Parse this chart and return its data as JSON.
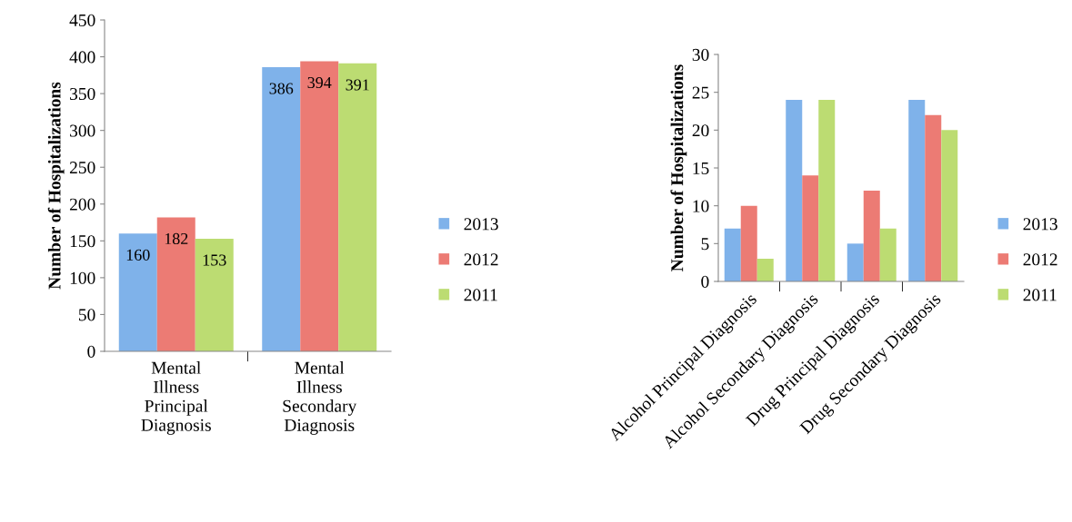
{
  "chart_data": [
    {
      "type": "bar",
      "ylabel": "Number of Hospitalizations",
      "categories": [
        "Mental\nIllness\nPrincipal\nDiagnosis",
        "Mental\nIllness\nSecondary\nDiagnosis"
      ],
      "series": [
        {
          "name": "2013",
          "color": "#7fb2ea",
          "values": [
            160,
            386
          ]
        },
        {
          "name": "2012",
          "color": "#ec7b74",
          "values": [
            182,
            394
          ]
        },
        {
          "name": "2011",
          "color": "#bcdc72",
          "values": [
            153,
            391
          ]
        }
      ],
      "ylim": [
        0,
        450
      ],
      "yticks": [
        0,
        50,
        100,
        150,
        200,
        250,
        300,
        350,
        400,
        450
      ],
      "data_labels": true,
      "grid": false,
      "legend": "right"
    },
    {
      "type": "bar",
      "ylabel": "Number of Hospitalizations",
      "categories": [
        "Alcohol Principal Diagnosis",
        "Alcohol Secondary Diagnosis",
        "Drug Principal Diagnosis",
        "Drug Secondary Diagnosis"
      ],
      "series": [
        {
          "name": "2013",
          "color": "#7fb2ea",
          "values": [
            7,
            24,
            5,
            24
          ]
        },
        {
          "name": "2012",
          "color": "#ec7b74",
          "values": [
            10,
            14,
            12,
            22
          ]
        },
        {
          "name": "2011",
          "color": "#bcdc72",
          "values": [
            3,
            24,
            7,
            20
          ]
        }
      ],
      "ylim": [
        0,
        30
      ],
      "yticks": [
        0,
        5,
        10,
        15,
        20,
        25,
        30
      ],
      "grid": false,
      "legend": "right"
    }
  ]
}
